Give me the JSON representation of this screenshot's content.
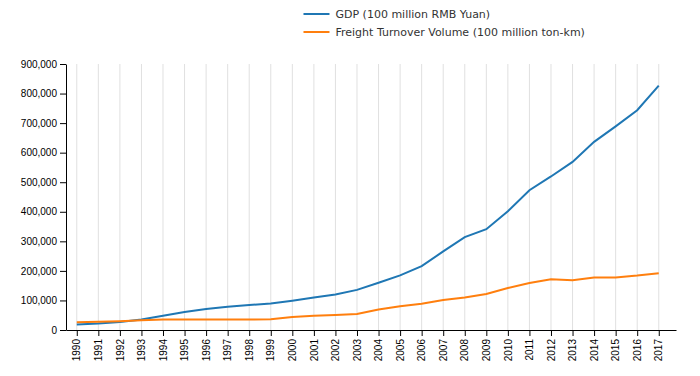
{
  "chart_data": {
    "type": "line",
    "x": [
      1990,
      1991,
      1992,
      1993,
      1994,
      1995,
      1996,
      1997,
      1998,
      1999,
      2000,
      2001,
      2002,
      2003,
      2004,
      2005,
      2006,
      2007,
      2008,
      2009,
      2010,
      2011,
      2012,
      2013,
      2014,
      2015,
      2016,
      2017
    ],
    "series": [
      {
        "name": "GDP (100 million RMB Yuan)",
        "values": [
          18668,
          21781,
          26923,
          35334,
          48198,
          60793,
          71177,
          78973,
          84402,
          89677,
          99215,
          109655,
          120333,
          135823,
          159878,
          184937,
          216314,
          265810,
          314045,
          340903,
          401513,
          473104,
          519470,
          568845,
          636463,
          689052,
          743586,
          827122
        ]
      },
      {
        "name": "Freight Turnover Volume (100 million ton-km)",
        "values": [
          26207,
          27872,
          29768,
          32648,
          35695,
          35859,
          35930,
          35599,
          35699,
          36201,
          44321,
          47812,
          50686,
          53859,
          69445,
          80258,
          88840,
          101419,
          110300,
          122140,
          141837,
          159324,
          172073,
          168000,
          178000,
          178000,
          184000,
          192000
        ]
      }
    ],
    "xlim": [
      1989.5,
      2017.8
    ],
    "xticks": [
      1990,
      1991,
      1992,
      1993,
      1994,
      1995,
      1996,
      1997,
      1998,
      1999,
      2000,
      2001,
      2002,
      2003,
      2004,
      2005,
      2006,
      2007,
      2008,
      2009,
      2010,
      2011,
      2012,
      2013,
      2014,
      2015,
      2016,
      2017
    ],
    "ylim": [
      0,
      900000
    ],
    "yticks": [
      0,
      {
        "value": 100000,
        "label": "100,000"
      },
      {
        "value": 200000,
        "label": "200,000"
      },
      {
        "value": 300000,
        "label": "300,000"
      },
      {
        "value": 400000,
        "label": "400,000"
      },
      {
        "value": 500000,
        "label": "500,000"
      },
      {
        "value": 600000,
        "label": "600,000"
      },
      {
        "value": 700000,
        "label": "700,000"
      },
      {
        "value": 800000,
        "label": "800,000"
      },
      {
        "value": 900000,
        "label": "900,000"
      }
    ],
    "grid": "x",
    "legend": "top"
  }
}
